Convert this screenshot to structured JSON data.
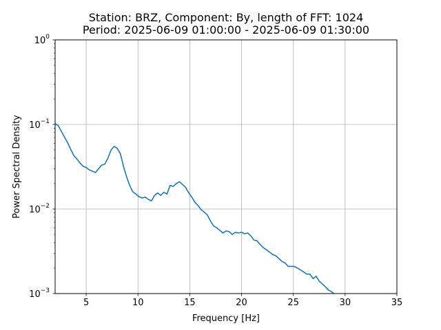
{
  "chart_data": {
    "type": "line",
    "title": "Station: BRZ, Component: By, length of FFT: 1024",
    "subtitle": "Period: 2025-06-09 01:00:00 - 2025-06-09 01:30:00",
    "xlabel": "Frequency [Hz]",
    "ylabel": "Power Spectral Density",
    "xlim": [
      2,
      35
    ],
    "ylim": [
      0.001,
      1
    ],
    "yscale": "log",
    "grid": true,
    "x_ticks": [
      5,
      10,
      15,
      20,
      25,
      30,
      35
    ],
    "x_tick_labels": [
      "5",
      "10",
      "15",
      "20",
      "25",
      "30",
      "35"
    ],
    "y_ticks": [
      0.001,
      0.01,
      0.1,
      1
    ],
    "y_tick_labels": [
      {
        "base": "10",
        "exp": "−3"
      },
      {
        "base": "10",
        "exp": "−2"
      },
      {
        "base": "10",
        "exp": "−1"
      },
      {
        "base": "10",
        "exp": "0"
      }
    ],
    "series": [
      {
        "color": "#1f77b4",
        "x": [
          2.0,
          2.3,
          2.6,
          2.9,
          3.2,
          3.5,
          3.8,
          4.1,
          4.4,
          4.7,
          5.0,
          5.3,
          5.6,
          5.9,
          6.2,
          6.5,
          6.8,
          7.1,
          7.4,
          7.7,
          8.0,
          8.3,
          8.6,
          8.9,
          9.2,
          9.5,
          9.8,
          10.1,
          10.4,
          10.7,
          11.0,
          11.3,
          11.6,
          11.9,
          12.2,
          12.5,
          12.8,
          13.1,
          13.4,
          13.7,
          14.0,
          14.3,
          14.6,
          14.9,
          15.2,
          15.5,
          15.8,
          16.1,
          16.4,
          16.7,
          17.0,
          17.3,
          17.6,
          17.9,
          18.2,
          18.5,
          18.8,
          19.1,
          19.4,
          19.7,
          20.0,
          20.3,
          20.6,
          20.9,
          21.2,
          21.5,
          21.8,
          22.1,
          22.4,
          22.7,
          23.0,
          23.3,
          23.6,
          23.9,
          24.2,
          24.5,
          24.8,
          25.1,
          25.4,
          25.7,
          26.0,
          26.3,
          26.6,
          26.9,
          27.2,
          27.5,
          27.8,
          28.1,
          28.4,
          28.7,
          29.0
        ],
        "y": [
          0.102,
          0.097,
          0.083,
          0.071,
          0.061,
          0.051,
          0.043,
          0.039,
          0.035,
          0.032,
          0.031,
          0.029,
          0.028,
          0.027,
          0.03,
          0.033,
          0.034,
          0.04,
          0.05,
          0.055,
          0.052,
          0.045,
          0.032,
          0.024,
          0.019,
          0.016,
          0.015,
          0.014,
          0.0135,
          0.0138,
          0.013,
          0.0125,
          0.0145,
          0.0155,
          0.0145,
          0.0158,
          0.015,
          0.019,
          0.0185,
          0.02,
          0.021,
          0.0195,
          0.018,
          0.0155,
          0.0138,
          0.012,
          0.011,
          0.0098,
          0.0092,
          0.0085,
          0.0072,
          0.0063,
          0.006,
          0.0056,
          0.0052,
          0.0055,
          0.0054,
          0.005,
          0.0053,
          0.0052,
          0.0053,
          0.0051,
          0.0052,
          0.0048,
          0.0043,
          0.0042,
          0.0038,
          0.0035,
          0.0033,
          0.0031,
          0.0029,
          0.0028,
          0.0026,
          0.0024,
          0.0023,
          0.0021,
          0.0021,
          0.0021,
          0.002,
          0.0019,
          0.0018,
          0.0017,
          0.0017,
          0.0015,
          0.0016,
          0.0014,
          0.0013,
          0.0012,
          0.0011,
          0.00105,
          0.00098
        ]
      }
    ]
  }
}
